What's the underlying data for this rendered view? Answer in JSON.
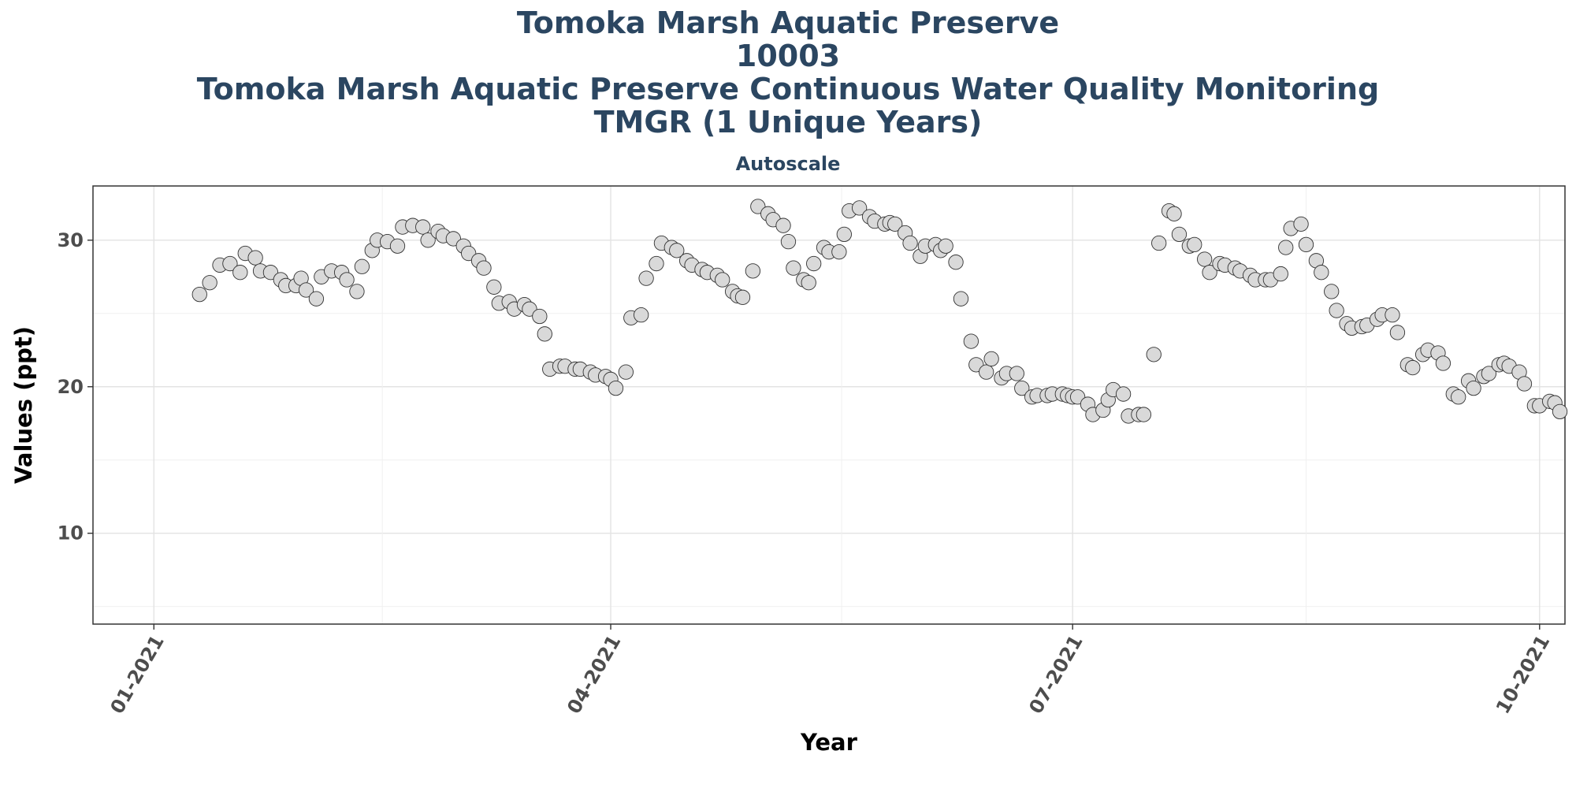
{
  "chart_data": {
    "type": "scatter",
    "title_lines": [
      "Tomoka Marsh Aquatic Preserve",
      "10003",
      "Tomoka Marsh Aquatic Preserve Continuous Water Quality Monitoring",
      "TMGR (1 Unique Years)"
    ],
    "subtitle": "Autoscale",
    "xlabel": "Year",
    "ylabel": "Values (ppt)",
    "x_ticks": [
      "01-2021",
      "04-2021",
      "07-2021",
      "10-2021"
    ],
    "y_ticks": [
      10,
      20,
      30
    ],
    "xlim": [
      "2020-12-20",
      "2021-10-06"
    ],
    "ylim": [
      3.8,
      33.7
    ],
    "grid": true,
    "point_color": "#d9d9d9",
    "point_edge": "#333333",
    "points": [
      [
        "2021-01-10",
        26.3
      ],
      [
        "2021-01-12",
        27.1
      ],
      [
        "2021-01-14",
        28.3
      ],
      [
        "2021-01-16",
        28.4
      ],
      [
        "2021-01-18",
        27.8
      ],
      [
        "2021-01-19",
        29.1
      ],
      [
        "2021-01-21",
        28.8
      ],
      [
        "2021-01-22",
        27.9
      ],
      [
        "2021-01-24",
        27.8
      ],
      [
        "2021-01-26",
        27.3
      ],
      [
        "2021-01-27",
        26.9
      ],
      [
        "2021-01-29",
        26.9
      ],
      [
        "2021-01-30",
        27.4
      ],
      [
        "2021-01-31",
        26.6
      ],
      [
        "2021-02-02",
        26.0
      ],
      [
        "2021-02-03",
        27.5
      ],
      [
        "2021-02-05",
        27.9
      ],
      [
        "2021-02-07",
        27.8
      ],
      [
        "2021-02-08",
        27.3
      ],
      [
        "2021-02-10",
        26.5
      ],
      [
        "2021-02-11",
        28.2
      ],
      [
        "2021-02-13",
        29.3
      ],
      [
        "2021-02-14",
        30.0
      ],
      [
        "2021-02-16",
        29.9
      ],
      [
        "2021-02-18",
        29.6
      ],
      [
        "2021-02-19",
        30.9
      ],
      [
        "2021-02-21",
        31.0
      ],
      [
        "2021-02-23",
        30.9
      ],
      [
        "2021-02-24",
        30.0
      ],
      [
        "2021-02-26",
        30.6
      ],
      [
        "2021-02-27",
        30.3
      ],
      [
        "2021-03-01",
        30.1
      ],
      [
        "2021-03-03",
        29.6
      ],
      [
        "2021-03-04",
        29.1
      ],
      [
        "2021-03-06",
        28.6
      ],
      [
        "2021-03-07",
        28.1
      ],
      [
        "2021-03-09",
        26.8
      ],
      [
        "2021-03-10",
        25.7
      ],
      [
        "2021-03-12",
        25.8
      ],
      [
        "2021-03-13",
        25.3
      ],
      [
        "2021-03-15",
        25.6
      ],
      [
        "2021-03-16",
        25.3
      ],
      [
        "2021-03-18",
        24.8
      ],
      [
        "2021-03-19",
        23.6
      ],
      [
        "2021-03-20",
        21.2
      ],
      [
        "2021-03-22",
        21.4
      ],
      [
        "2021-03-23",
        21.4
      ],
      [
        "2021-03-25",
        21.2
      ],
      [
        "2021-03-26",
        21.2
      ],
      [
        "2021-03-28",
        21.0
      ],
      [
        "2021-03-29",
        20.8
      ],
      [
        "2021-03-31",
        20.7
      ],
      [
        "2021-04-01",
        20.5
      ],
      [
        "2021-04-02",
        19.9
      ],
      [
        "2021-04-04",
        21.0
      ],
      [
        "2021-04-05",
        24.7
      ],
      [
        "2021-04-07",
        24.9
      ],
      [
        "2021-04-08",
        27.4
      ],
      [
        "2021-04-10",
        28.4
      ],
      [
        "2021-04-11",
        29.8
      ],
      [
        "2021-04-13",
        29.5
      ],
      [
        "2021-04-14",
        29.3
      ],
      [
        "2021-04-16",
        28.6
      ],
      [
        "2021-04-17",
        28.3
      ],
      [
        "2021-04-19",
        28.0
      ],
      [
        "2021-04-20",
        27.8
      ],
      [
        "2021-04-22",
        27.6
      ],
      [
        "2021-04-23",
        27.3
      ],
      [
        "2021-04-25",
        26.5
      ],
      [
        "2021-04-26",
        26.2
      ],
      [
        "2021-04-27",
        26.1
      ],
      [
        "2021-04-29",
        27.9
      ],
      [
        "2021-04-30",
        32.3
      ],
      [
        "2021-05-02",
        31.8
      ],
      [
        "2021-05-03",
        31.4
      ],
      [
        "2021-05-05",
        31.0
      ],
      [
        "2021-05-06",
        29.9
      ],
      [
        "2021-05-07",
        28.1
      ],
      [
        "2021-05-09",
        27.3
      ],
      [
        "2021-05-10",
        27.1
      ],
      [
        "2021-05-11",
        28.4
      ],
      [
        "2021-05-13",
        29.5
      ],
      [
        "2021-05-14",
        29.2
      ],
      [
        "2021-05-16",
        29.2
      ],
      [
        "2021-05-17",
        30.4
      ],
      [
        "2021-05-18",
        32.0
      ],
      [
        "2021-05-20",
        32.2
      ],
      [
        "2021-05-22",
        31.6
      ],
      [
        "2021-05-23",
        31.3
      ],
      [
        "2021-05-25",
        31.1
      ],
      [
        "2021-05-26",
        31.2
      ],
      [
        "2021-05-27",
        31.1
      ],
      [
        "2021-05-29",
        30.5
      ],
      [
        "2021-05-30",
        29.8
      ],
      [
        "2021-06-01",
        28.9
      ],
      [
        "2021-06-02",
        29.6
      ],
      [
        "2021-06-04",
        29.7
      ],
      [
        "2021-06-05",
        29.3
      ],
      [
        "2021-06-06",
        29.6
      ],
      [
        "2021-06-08",
        28.5
      ],
      [
        "2021-06-09",
        26.0
      ],
      [
        "2021-06-11",
        23.1
      ],
      [
        "2021-06-12",
        21.5
      ],
      [
        "2021-06-14",
        21.0
      ],
      [
        "2021-06-15",
        21.9
      ],
      [
        "2021-06-17",
        20.6
      ],
      [
        "2021-06-18",
        20.9
      ],
      [
        "2021-06-20",
        20.9
      ],
      [
        "2021-06-21",
        19.9
      ],
      [
        "2021-06-23",
        19.3
      ],
      [
        "2021-06-24",
        19.4
      ],
      [
        "2021-06-26",
        19.4
      ],
      [
        "2021-06-27",
        19.5
      ],
      [
        "2021-06-29",
        19.5
      ],
      [
        "2021-06-30",
        19.4
      ],
      [
        "2021-07-01",
        19.3
      ],
      [
        "2021-07-02",
        19.3
      ],
      [
        "2021-07-04",
        18.8
      ],
      [
        "2021-07-05",
        18.1
      ],
      [
        "2021-07-07",
        18.4
      ],
      [
        "2021-07-08",
        19.1
      ],
      [
        "2021-07-09",
        19.8
      ],
      [
        "2021-07-11",
        19.5
      ],
      [
        "2021-07-12",
        18.0
      ],
      [
        "2021-07-14",
        18.1
      ],
      [
        "2021-07-15",
        18.1
      ],
      [
        "2021-07-17",
        22.2
      ],
      [
        "2021-07-18",
        29.8
      ],
      [
        "2021-07-20",
        32.0
      ],
      [
        "2021-07-21",
        31.8
      ],
      [
        "2021-07-22",
        30.4
      ],
      [
        "2021-07-24",
        29.6
      ],
      [
        "2021-07-25",
        29.7
      ],
      [
        "2021-07-27",
        28.7
      ],
      [
        "2021-07-28",
        27.8
      ],
      [
        "2021-07-30",
        28.4
      ],
      [
        "2021-07-31",
        28.3
      ],
      [
        "2021-08-02",
        28.1
      ],
      [
        "2021-08-03",
        27.9
      ],
      [
        "2021-08-05",
        27.6
      ],
      [
        "2021-08-06",
        27.3
      ],
      [
        "2021-08-08",
        27.3
      ],
      [
        "2021-08-09",
        27.3
      ],
      [
        "2021-08-11",
        27.7
      ],
      [
        "2021-08-12",
        29.5
      ],
      [
        "2021-08-13",
        30.8
      ],
      [
        "2021-08-15",
        31.1
      ],
      [
        "2021-08-16",
        29.7
      ],
      [
        "2021-08-18",
        28.6
      ],
      [
        "2021-08-19",
        27.8
      ],
      [
        "2021-08-21",
        26.5
      ],
      [
        "2021-08-22",
        25.2
      ],
      [
        "2021-08-24",
        24.3
      ],
      [
        "2021-08-25",
        24.0
      ],
      [
        "2021-08-27",
        24.1
      ],
      [
        "2021-08-28",
        24.2
      ],
      [
        "2021-08-30",
        24.6
      ],
      [
        "2021-08-31",
        24.9
      ],
      [
        "2021-09-02",
        24.9
      ],
      [
        "2021-09-03",
        23.7
      ],
      [
        "2021-09-05",
        21.5
      ],
      [
        "2021-09-06",
        21.3
      ],
      [
        "2021-09-08",
        22.2
      ],
      [
        "2021-09-09",
        22.5
      ],
      [
        "2021-09-11",
        22.3
      ],
      [
        "2021-09-12",
        21.6
      ],
      [
        "2021-09-14",
        19.5
      ],
      [
        "2021-09-15",
        19.3
      ],
      [
        "2021-09-17",
        20.4
      ],
      [
        "2021-09-18",
        19.9
      ],
      [
        "2021-09-20",
        20.7
      ],
      [
        "2021-09-21",
        20.9
      ],
      [
        "2021-09-23",
        21.5
      ],
      [
        "2021-09-24",
        21.6
      ],
      [
        "2021-09-25",
        21.4
      ],
      [
        "2021-09-27",
        21.0
      ],
      [
        "2021-09-28",
        20.2
      ],
      [
        "2021-09-30",
        18.7
      ],
      [
        "2021-10-01",
        18.7
      ],
      [
        "2021-10-03",
        19.0
      ],
      [
        "2021-10-04",
        18.9
      ],
      [
        "2021-10-05",
        18.3
      ]
    ]
  }
}
